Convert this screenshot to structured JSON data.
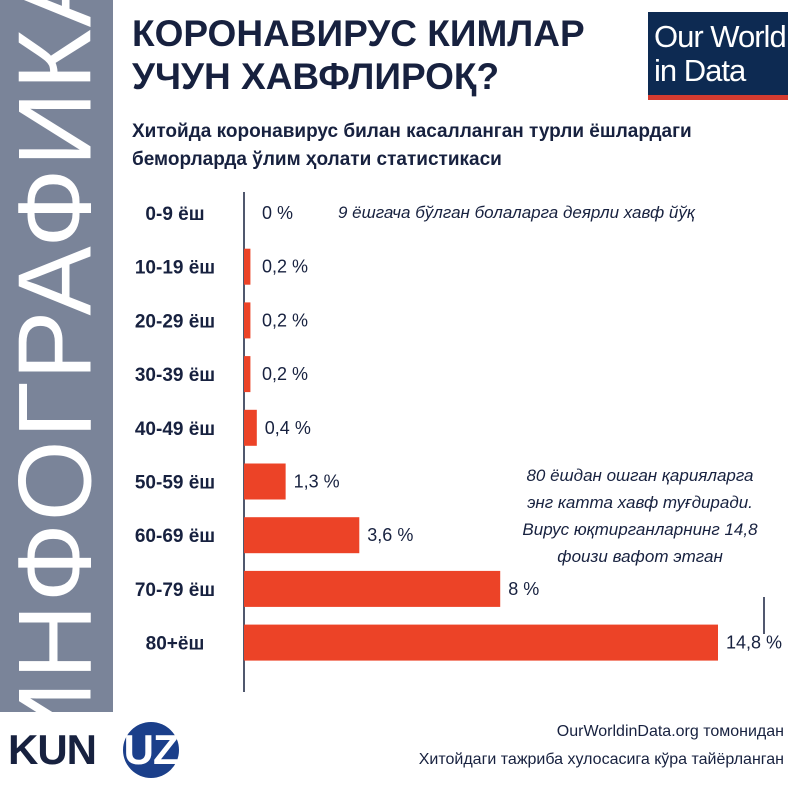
{
  "sidebar": {
    "text": "ИНФОГРАФИКА"
  },
  "header": {
    "title_line1": "КОРОНАВИРУС КИМЛАР",
    "title_line2": "УЧУН ХАВФЛИРОҚ?",
    "logo_line1": "Our World",
    "logo_line2": "in Data"
  },
  "subtitle": {
    "line1": "Хитойда коронавирус билан касалланган турли ёшлардаги",
    "line2": "беморларда ўлим ҳолати статистикаси"
  },
  "chart_data": {
    "type": "bar",
    "orientation": "horizontal",
    "categories": [
      "0-9 ёш",
      "10-19 ёш",
      "20-29 ёш",
      "30-39 ёш",
      "40-49 ёш",
      "50-59 ёш",
      "60-69 ёш",
      "70-79 ёш",
      "80+ёш"
    ],
    "values": [
      0,
      0.2,
      0.2,
      0.2,
      0.4,
      1.3,
      3.6,
      8,
      14.8
    ],
    "value_labels": [
      "0 %",
      "0,2 %",
      "0,2 %",
      "0,2 %",
      "0,4 %",
      "1,3 %",
      "3,6 %",
      "8 %",
      "14,8 %"
    ],
    "xlim": [
      0,
      14.8
    ],
    "grid": false,
    "bar_color": "#ec4327",
    "annotations": {
      "young": "9 ёшгача бўлган болаларга деярли хавф йўқ",
      "old": [
        "80 ёшдан ошган қарияларга",
        "энг катта хавф туғдиради.",
        "Вирус юқтирганларнинг 14,8",
        "фоизи вафот этган"
      ]
    }
  },
  "footer": {
    "logo_kun": "KUN",
    "logo_uz": ".UZ",
    "source_line1": "OurWorldinData.org томонидан",
    "source_line2": "Хитойдаги тажриба хулосасига кўра тайёрланган"
  },
  "colors": {
    "sidebar": "#7a8499",
    "navy": "#17213f",
    "bar": "#ec4327",
    "logo_bg": "#0d2a52",
    "logo_accent": "#d43b30",
    "kun_blue": "#1b3f8a"
  }
}
